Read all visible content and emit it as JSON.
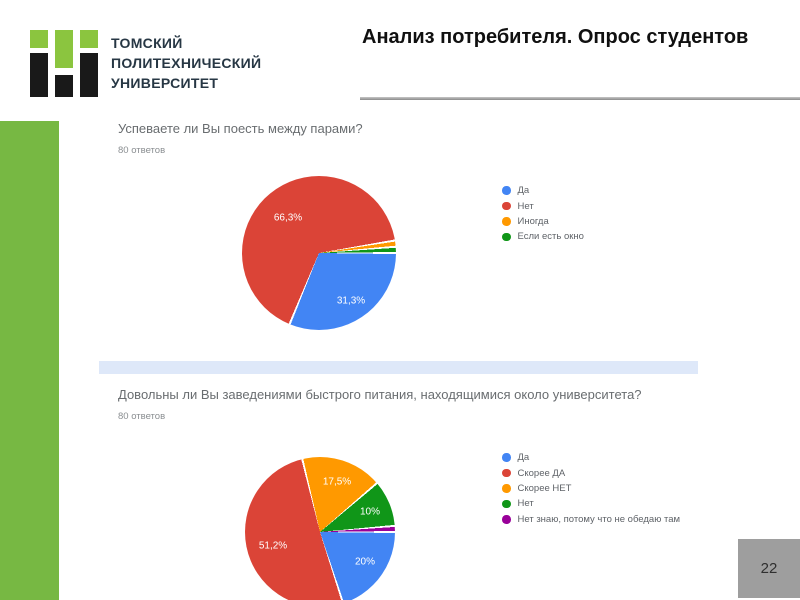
{
  "page": {
    "title": "Анализ потребителя. Опрос студентов",
    "page_number": "22"
  },
  "logo": {
    "text_line1": "ТОМСКИЙ",
    "text_line2": "ПОЛИТЕХНИЧЕСКИЙ",
    "text_line3": "УНИВЕРСИТЕТ"
  },
  "colors": {
    "sidebar-green": "#77b843",
    "logo-green": "#8bc53f",
    "logo-black": "#191919",
    "logo-text": "#273744",
    "title-text": "#101010",
    "rule-gray": "#8a8a8a",
    "question-text": "#696d70",
    "meta-text": "#8a8e91",
    "legend-text": "#5f6368",
    "band-blue": "#dee8f9",
    "pagebox-gray": "#9e9e9e",
    "pagebox-text": "#2f2f2f"
  },
  "chart_data": [
    {
      "type": "pie",
      "question": "Успеваете ли Вы поесть между парами?",
      "responses": "80 ответов",
      "categories": [
        "Да",
        "Нет",
        "Иногда",
        "Если есть окно"
      ],
      "values": [
        31.3,
        66.3,
        1.3,
        1.3
      ],
      "colors": [
        "#4285f4",
        "#db4437",
        "#ff9900",
        "#109618"
      ],
      "slice_labels": [
        "66,3%",
        "31,3%"
      ],
      "legend_position": "right",
      "start_angle_deg": 90,
      "direction": "clockwise"
    },
    {
      "type": "pie",
      "question": "Довольны ли Вы заведениями быстрого питания, находящимися около университета?",
      "responses": "80 ответов",
      "categories": [
        "Да",
        "Скорее ДА",
        "Скорее НЕТ",
        "Нет",
        "Нет знаю, потому что не обедаю там"
      ],
      "values": [
        20,
        51.2,
        17.5,
        10,
        1.3
      ],
      "colors": [
        "#4285f4",
        "#db4437",
        "#ff9900",
        "#109618",
        "#990099"
      ],
      "slice_labels": [
        "51,2%",
        "17,5%",
        "10%",
        "20%"
      ],
      "legend_position": "right",
      "start_angle_deg": 90,
      "direction": "clockwise"
    }
  ]
}
